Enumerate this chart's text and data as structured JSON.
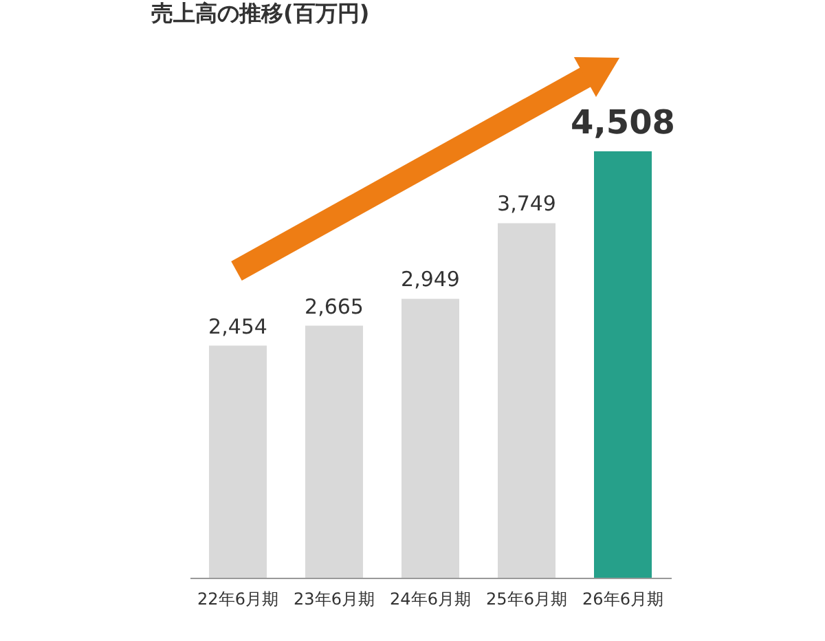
{
  "chart_data": {
    "type": "bar",
    "title": "売上高の推移(百万円)",
    "categories": [
      "22年6月期",
      "23年6月期",
      "24年6月期",
      "25年6月期",
      "26年6月期"
    ],
    "values": [
      2454,
      2665,
      2949,
      3749,
      4508
    ],
    "colors": [
      "#d9d9d9",
      "#d9d9d9",
      "#d9d9d9",
      "#d9d9d9",
      "#26a08a"
    ],
    "value_labels": [
      "2,454",
      "2,665",
      "2,949",
      "3,749",
      "4,508"
    ],
    "grid": false
  }
}
